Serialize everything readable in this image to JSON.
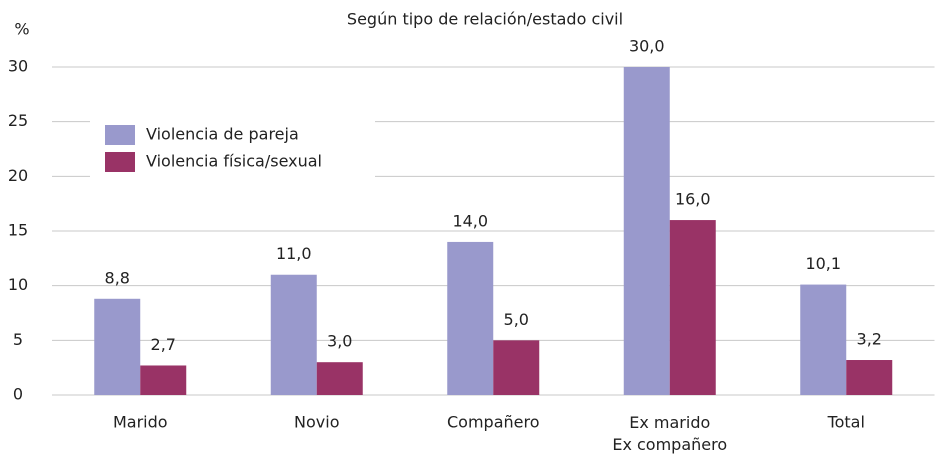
{
  "chart_data": {
    "type": "bar",
    "title": "Según tipo de relación/estado civil",
    "y_label": "%",
    "categories": [
      "Marido",
      "Novio",
      "Compañero",
      "Ex marido\nEx compañero",
      "Total"
    ],
    "series": [
      {
        "name": "Violencia de pareja",
        "color": "#9999cc",
        "values": [
          8.8,
          11.0,
          14.0,
          30.0,
          10.1
        ],
        "value_labels": [
          "8,8",
          "11,0",
          "14,0",
          "30,0",
          "10,1"
        ]
      },
      {
        "name": "Violencia física/sexual",
        "color": "#993366",
        "values": [
          2.7,
          3.0,
          5.0,
          16.0,
          3.2
        ],
        "value_labels": [
          "2,7",
          "3,0",
          "5,0",
          "16,0",
          "3,2"
        ]
      }
    ],
    "ylim": [
      0,
      30
    ],
    "yticks": [
      0,
      5,
      10,
      15,
      20,
      25,
      30
    ],
    "grid": true,
    "legend": "upper left"
  }
}
